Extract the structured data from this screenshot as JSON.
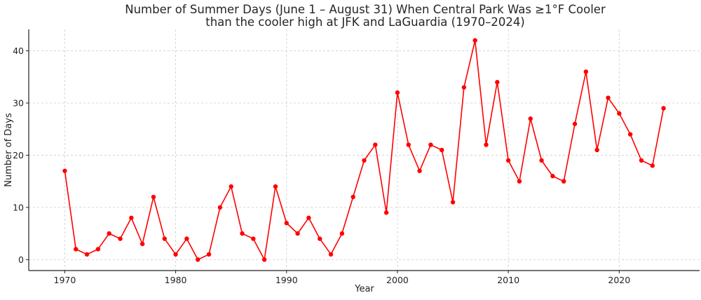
{
  "chart_data": {
    "type": "line",
    "title": "Number of Summer Days (June 1 – August 31) When Central Park Was ≥1°F Cooler",
    "subtitle": "than the cooler high at JFK and LaGuardia (1970–2024)",
    "xlabel": "Year",
    "ylabel": "Number of Days",
    "xlim": [
      1966.75,
      2027.25
    ],
    "ylim": [
      -2.1,
      44.1
    ],
    "xticks": [
      1970,
      1980,
      1990,
      2000,
      2010,
      2020
    ],
    "yticks": [
      0,
      10,
      20,
      30,
      40
    ],
    "grid": true,
    "line_color": "#ff0000",
    "x": [
      1970,
      1971,
      1972,
      1973,
      1974,
      1975,
      1976,
      1977,
      1978,
      1979,
      1980,
      1981,
      1982,
      1983,
      1984,
      1985,
      1986,
      1987,
      1988,
      1989,
      1990,
      1991,
      1992,
      1993,
      1994,
      1995,
      1996,
      1997,
      1998,
      1999,
      2000,
      2001,
      2002,
      2003,
      2004,
      2005,
      2006,
      2007,
      2008,
      2009,
      2010,
      2011,
      2012,
      2013,
      2014,
      2015,
      2016,
      2017,
      2018,
      2019,
      2020,
      2021,
      2022,
      2023,
      2024
    ],
    "series": [
      {
        "values": [
          17,
          2,
          1,
          2,
          5,
          4,
          8,
          3,
          12,
          4,
          1,
          4,
          0,
          1,
          10,
          14,
          5,
          4,
          0,
          14,
          7,
          5,
          8,
          4,
          1,
          5,
          12,
          19,
          22,
          9,
          32,
          22,
          17,
          22,
          21,
          11,
          33,
          42,
          22,
          34,
          19,
          15,
          27,
          19,
          16,
          15,
          26,
          36,
          21,
          31,
          28,
          24,
          19,
          18,
          29
        ]
      }
    ]
  }
}
